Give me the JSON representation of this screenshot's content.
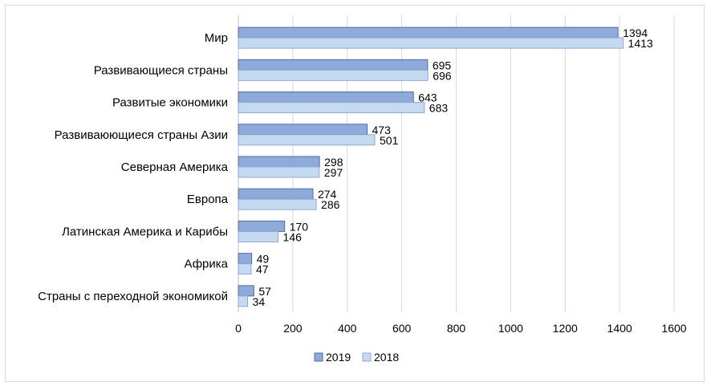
{
  "chart_data": {
    "type": "bar",
    "orientation": "horizontal",
    "categories": [
      "Мир",
      "Развивающиеся страны",
      "Развитые экономики",
      "Развиваюющиеся страны Азии",
      "Северная Америка",
      "Европа",
      "Латинская Америка и Карибы",
      "Африка",
      "Страны с переходной экономикой"
    ],
    "series": [
      {
        "name": "2019",
        "values": [
          1394,
          695,
          643,
          473,
          298,
          274,
          170,
          49,
          57
        ],
        "color": "#8eaadb"
      },
      {
        "name": "2018",
        "values": [
          1413,
          696,
          683,
          501,
          297,
          286,
          146,
          47,
          34
        ],
        "color": "#c5d9f1"
      }
    ],
    "xlim": [
      0,
      1600
    ],
    "xticks": [
      0,
      200,
      400,
      600,
      800,
      1000,
      1200,
      1400,
      1600
    ],
    "grid": "vertical",
    "legend_position": "bottom",
    "data_labels": true
  }
}
